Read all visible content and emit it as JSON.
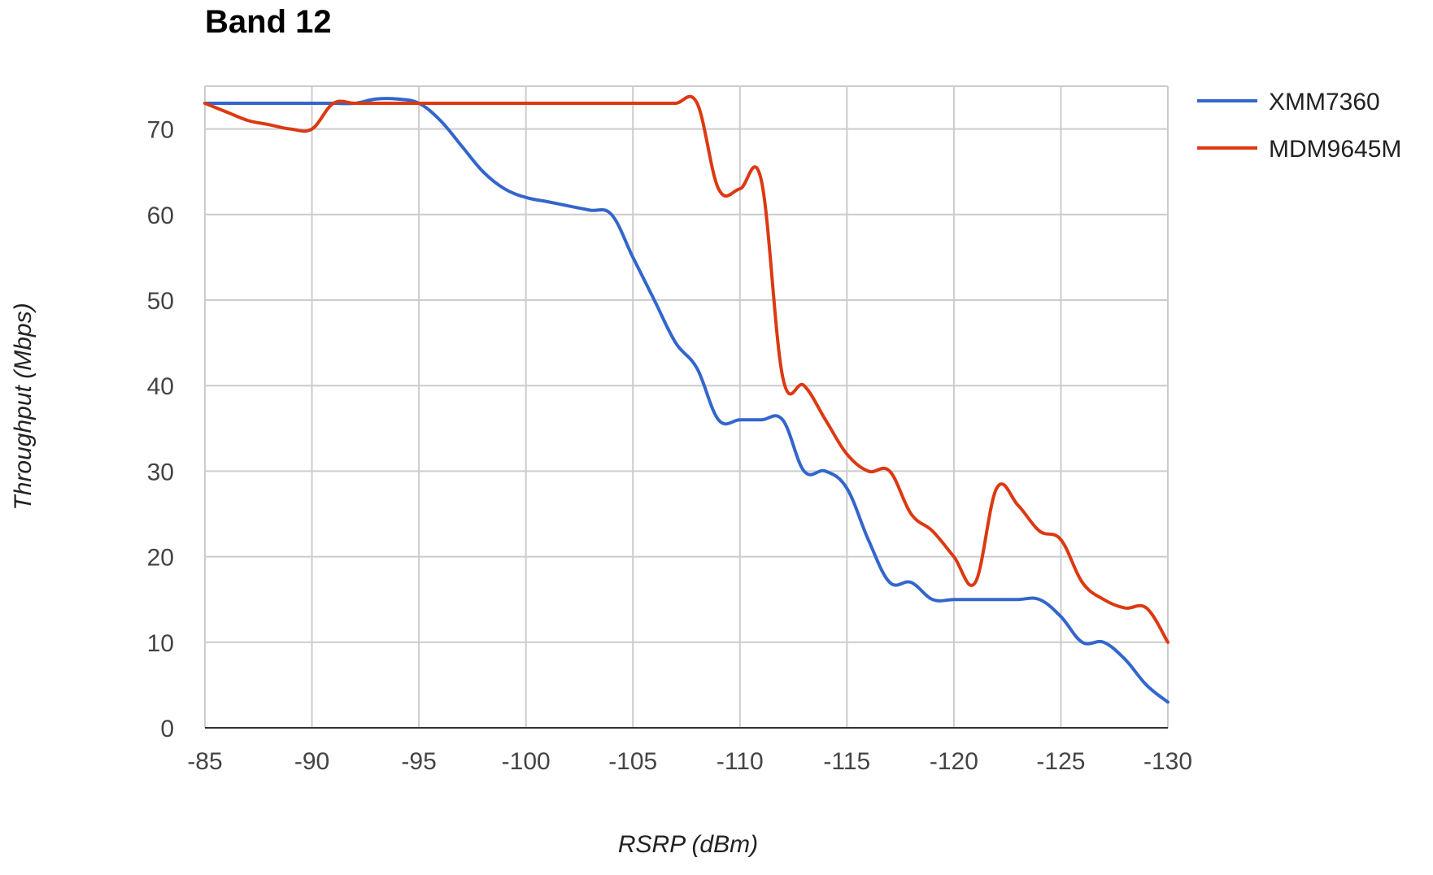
{
  "chart_data": {
    "type": "line",
    "title": "Band 12",
    "xlabel": "RSRP (dBm)",
    "ylabel": "Throughput (Mbps)",
    "xlim": [
      -85,
      -130
    ],
    "ylim": [
      0,
      75
    ],
    "xticks": [
      "-85",
      "-90",
      "-95",
      "-100",
      "-105",
      "-110",
      "-115",
      "-120",
      "-125",
      "-130"
    ],
    "yticks": [
      "0",
      "10",
      "20",
      "30",
      "40",
      "50",
      "60",
      "70"
    ],
    "grid": true,
    "legend_position": "right",
    "x": [
      -85,
      -86,
      -87,
      -88,
      -89,
      -90,
      -91,
      -92,
      -93,
      -94,
      -95,
      -96,
      -97,
      -98,
      -99,
      -100,
      -101,
      -102,
      -103,
      -104,
      -105,
      -106,
      -107,
      -108,
      -109,
      -110,
      -111,
      -112,
      -113,
      -114,
      -115,
      -116,
      -117,
      -118,
      -119,
      -120,
      -121,
      -122,
      -123,
      -124,
      -125,
      -126,
      -127,
      -128,
      -129,
      -130
    ],
    "series": [
      {
        "name": "XMM7360",
        "color": "#3366cc",
        "values": [
          73,
          73,
          73,
          73,
          73,
          73,
          73,
          73,
          73.5,
          73.5,
          73,
          71,
          68,
          65,
          63,
          62,
          61.5,
          61,
          60.5,
          60,
          55,
          50,
          45,
          42,
          36,
          36,
          36,
          36,
          30,
          30,
          28,
          22,
          17,
          17,
          15,
          15,
          15,
          15,
          15,
          15,
          13,
          10,
          10,
          8,
          5,
          3
        ]
      },
      {
        "name": "MDM9645M",
        "color": "#dc3912",
        "values": [
          73,
          72,
          71,
          70.5,
          70,
          70,
          73,
          73,
          73,
          73,
          73,
          73,
          73,
          73,
          73,
          73,
          73,
          73,
          73,
          73,
          73,
          73,
          73,
          73,
          63,
          63,
          64,
          41,
          40,
          36,
          32,
          30,
          30,
          25,
          23,
          20,
          17,
          28,
          26,
          23,
          22,
          17,
          15,
          14,
          14,
          10
        ]
      }
    ]
  }
}
